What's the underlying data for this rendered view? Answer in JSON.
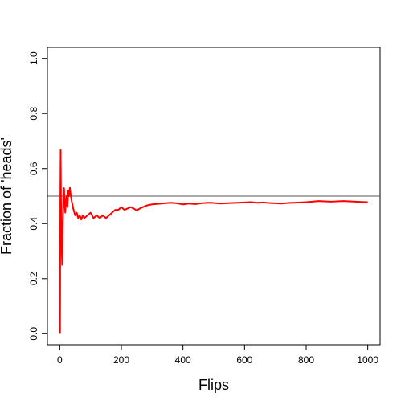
{
  "chart_data": {
    "type": "line",
    "title": "",
    "xlabel": "Flips",
    "ylabel": "Fraction of 'heads'",
    "xlim": [
      -40,
      1040
    ],
    "ylim": [
      -0.04,
      1.04
    ],
    "xticks": [
      0,
      200,
      400,
      600,
      800,
      1000
    ],
    "yticks": [
      0.0,
      0.2,
      0.4,
      0.6,
      0.8,
      1.0
    ],
    "xtick_labels": [
      "0",
      "200",
      "400",
      "600",
      "800",
      "1000"
    ],
    "ytick_labels": [
      "0.0",
      "0.2",
      "0.4",
      "0.6",
      "0.8",
      "1.0"
    ],
    "grid": false,
    "reference_line": {
      "y": 0.5,
      "color": "#555555"
    },
    "series": [
      {
        "color": "#ff0000",
        "x": [
          1,
          2,
          3,
          4,
          5,
          6,
          7,
          8,
          9,
          10,
          12,
          14,
          16,
          18,
          20,
          22,
          25,
          28,
          30,
          33,
          36,
          40,
          45,
          50,
          55,
          60,
          65,
          70,
          75,
          80,
          90,
          100,
          110,
          120,
          130,
          140,
          150,
          160,
          170,
          180,
          190,
          200,
          210,
          220,
          230,
          240,
          250,
          260,
          270,
          280,
          290,
          300,
          320,
          340,
          360,
          380,
          400,
          420,
          440,
          460,
          480,
          500,
          520,
          540,
          560,
          580,
          600,
          620,
          640,
          660,
          680,
          700,
          720,
          740,
          760,
          780,
          800,
          820,
          840,
          860,
          880,
          900,
          920,
          940,
          960,
          980,
          1000
        ],
        "y": [
          0.0,
          0.5,
          0.667,
          0.5,
          0.4,
          0.333,
          0.286,
          0.25,
          0.333,
          0.4,
          0.5,
          0.529,
          0.47,
          0.44,
          0.48,
          0.5,
          0.46,
          0.52,
          0.5,
          0.53,
          0.5,
          0.475,
          0.45,
          0.43,
          0.44,
          0.42,
          0.43,
          0.415,
          0.43,
          0.42,
          0.43,
          0.44,
          0.42,
          0.43,
          0.42,
          0.43,
          0.42,
          0.43,
          0.44,
          0.45,
          0.45,
          0.46,
          0.45,
          0.455,
          0.46,
          0.455,
          0.448,
          0.455,
          0.46,
          0.465,
          0.468,
          0.47,
          0.472,
          0.474,
          0.476,
          0.474,
          0.47,
          0.473,
          0.471,
          0.474,
          0.476,
          0.475,
          0.473,
          0.474,
          0.475,
          0.476,
          0.477,
          0.478,
          0.476,
          0.477,
          0.475,
          0.474,
          0.473,
          0.475,
          0.476,
          0.477,
          0.478,
          0.48,
          0.482,
          0.481,
          0.48,
          0.481,
          0.482,
          0.481,
          0.48,
          0.479,
          0.478
        ]
      }
    ]
  }
}
